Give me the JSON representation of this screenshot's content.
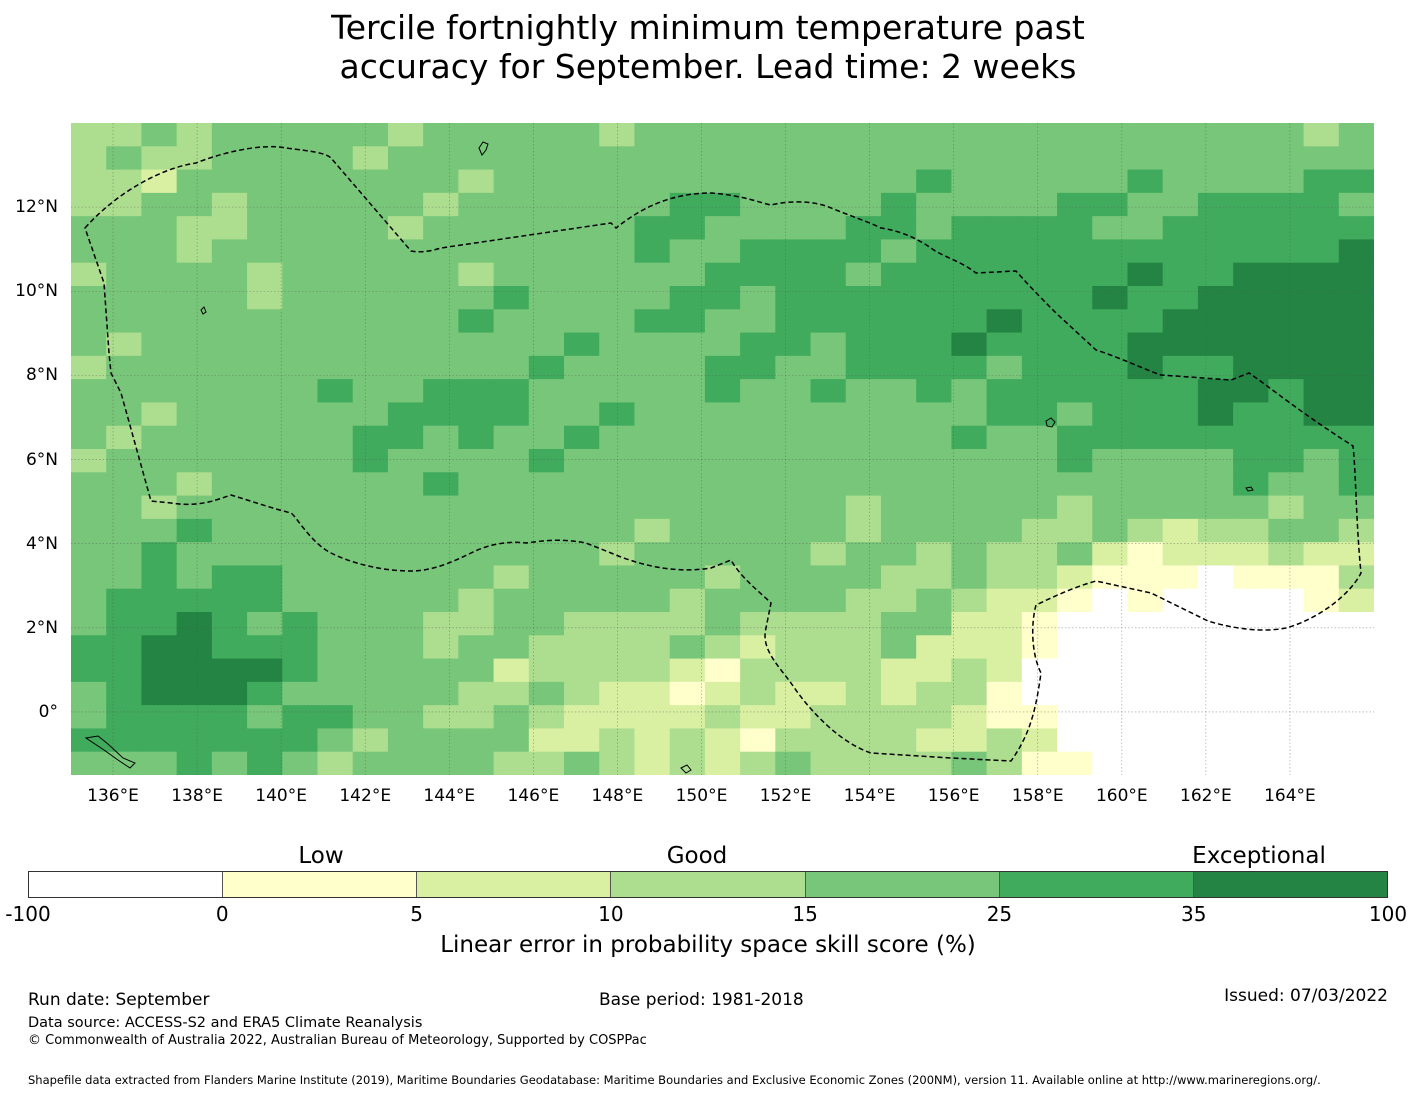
{
  "title_line1": "Tercile fortnightly minimum temperature past",
  "title_line2": "accuracy for September. Lead time: 2 weeks",
  "map": {
    "x_ticks": [
      "136°E",
      "138°E",
      "140°E",
      "142°E",
      "144°E",
      "146°E",
      "148°E",
      "150°E",
      "152°E",
      "154°E",
      "156°E",
      "158°E",
      "160°E",
      "162°E",
      "164°E"
    ],
    "y_ticks": [
      "12°N",
      "10°N",
      "8°N",
      "6°N",
      "4°N",
      "2°N",
      "0°"
    ]
  },
  "chart_data": {
    "type": "heatmap",
    "title": "Tercile fortnightly minimum temperature past accuracy for September. Lead time: 2 weeks",
    "x_range": [
      135.0,
      166.0
    ],
    "y_range": [
      -1.5,
      14.0
    ],
    "x_ticks_deg": [
      136,
      138,
      140,
      142,
      144,
      146,
      148,
      150,
      152,
      154,
      156,
      158,
      160,
      162,
      164
    ],
    "y_ticks_deg": [
      12,
      10,
      8,
      6,
      4,
      2,
      0
    ],
    "colorbar_bounds": [
      -100,
      0,
      5,
      10,
      15,
      25,
      35,
      100
    ],
    "colorbar_colors": [
      "#ffffff",
      "#ffffcc",
      "#d9f0a3",
      "#addd8e",
      "#78c679",
      "#41ab5d",
      "#238443"
    ],
    "colorbar_label": "Linear error in probability space skill score (%)",
    "grid_resolution_deg": 0.83,
    "notes": "LEPS skill score per grid cell; highest (35-100) in north-east and near 138E 1N; lowest (<0) in south-east near 160E 1N."
  },
  "legend": {
    "categories": [
      "Low",
      "Good",
      "Exceptional"
    ],
    "ticks": [
      "-100",
      "0",
      "5",
      "10",
      "15",
      "25",
      "35",
      "100"
    ],
    "colors": [
      "#ffffff",
      "#ffffcc",
      "#d9f0a3",
      "#addd8e",
      "#78c679",
      "#41ab5d",
      "#238443"
    ],
    "label": "Linear error in probability space skill score (%)"
  },
  "footer": {
    "run_date": "Run date: September",
    "base_period": "Base period: 1981-2018",
    "issued": "Issued: 07/03/2022",
    "data_source": "Data source: ACCESS-S2 and ERA5 Climate Reanalysis",
    "copyright": "© Commonwealth of Australia 2022, Australian Bureau of Meteorology, Supported by COSPPac",
    "shapefile": "Shapefile data extracted from Flanders Marine Institute (2019), Maritime Boundaries Geodatabase: Maritime Boundaries and Exclusive Economic Zones (200NM), version 11. Available online at http://www.marineregions.org/."
  }
}
